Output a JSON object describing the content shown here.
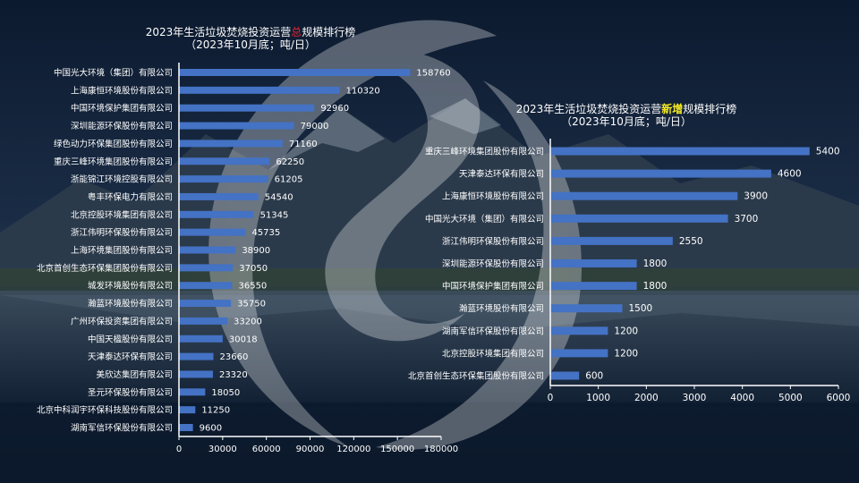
{
  "slide": {
    "watermark_icon": "stylized-s-logo-watermark",
    "background": "mountain-lake-night-photo"
  },
  "colors": {
    "bar": "#4472c4",
    "text": "#ffffff",
    "highlight_total": "#e0262f",
    "highlight_new": "#f6ea20"
  },
  "chart_data": [
    {
      "type": "bar",
      "orientation": "horizontal",
      "title_prefix": "2023年生活垃圾焚烧投资运营",
      "title_highlight": "总",
      "title_suffix": "规模排行榜",
      "subtitle": "（2023年10月底；吨/日）",
      "categories": [
        "中国光大环境（集团）有限公司",
        "上海康恒环境股份有限公司",
        "中国环境保护集团有限公司",
        "深圳能源环保股份有限公司",
        "绿色动力环保集团股份有限公司",
        "重庆三峰环境集团股份有限公司",
        "浙能锦江环境控股有限公司",
        "粤丰环保电力有限公司",
        "北京控股环境集团有限公司",
        "浙江伟明环保股份有限公司",
        "上海环境集团股份有限公司",
        "北京首创生态环保集团股份有限公司",
        "城发环境股份有限公司",
        "瀚蓝环境股份有限公司",
        "广州环保投资集团有限公司",
        "中国天楹股份有限公司",
        "天津泰达环保有限公司",
        "美欣达集团有限公司",
        "圣元环保股份有限公司",
        "北京中科润宇环保科技股份有限公司",
        "湖南军信环保股份有限公司"
      ],
      "values": [
        158760,
        110320,
        92960,
        79000,
        71160,
        62250,
        61205,
        54540,
        51345,
        45735,
        38900,
        37050,
        36550,
        35750,
        33200,
        30018,
        23660,
        23320,
        18050,
        11250,
        9600
      ],
      "value_labels": [
        "158760",
        "110320",
        "92960",
        "79000",
        "71160",
        "62250",
        "61205",
        "54540",
        "51345",
        "45735",
        "38900",
        "37050",
        "36550",
        "35750",
        "33200",
        "30018",
        "23660",
        "23320",
        "18050",
        "11250",
        "9600"
      ],
      "xlim": [
        0,
        180000
      ],
      "ticks": [
        "0",
        "30000",
        "60000",
        "90000",
        "120000",
        "150000",
        "180000"
      ],
      "tick_values": [
        0,
        30000,
        60000,
        90000,
        120000,
        150000,
        180000
      ],
      "xlabel": "",
      "ylabel": "",
      "grid": false,
      "legend": "none"
    },
    {
      "type": "bar",
      "orientation": "horizontal",
      "title_prefix": "2023年生活垃圾焚烧投资运营",
      "title_highlight": "新增",
      "title_suffix": "规模排行榜",
      "subtitle": "（2023年10月底；吨/日）",
      "categories": [
        "重庆三峰环境集团股份有限公司",
        "天津泰达环保有限公司",
        "上海康恒环境股份有限公司",
        "中国光大环境（集团）有限公司",
        "浙江伟明环保股份有限公司",
        "深圳能源环保股份有限公司",
        "中国环境保护集团有限公司",
        "瀚蓝环境股份有限公司",
        "湖南军信环保股份有限公司",
        "北京控股环境集团有限公司",
        "北京首创生态环保集团股份有限公司"
      ],
      "values": [
        5400,
        4600,
        3900,
        3700,
        2550,
        1800,
        1800,
        1500,
        1200,
        1200,
        600
      ],
      "value_labels": [
        "5400",
        "4600",
        "3900",
        "3700",
        "2550",
        "1800",
        "1800",
        "1500",
        "1200",
        "1200",
        "600"
      ],
      "xlim": [
        0,
        6000
      ],
      "ticks": [
        "0",
        "1000",
        "2000",
        "3000",
        "4000",
        "5000",
        "6000"
      ],
      "tick_values": [
        0,
        1000,
        2000,
        3000,
        4000,
        5000,
        6000
      ],
      "xlabel": "",
      "ylabel": "",
      "grid": false,
      "legend": "none"
    }
  ]
}
